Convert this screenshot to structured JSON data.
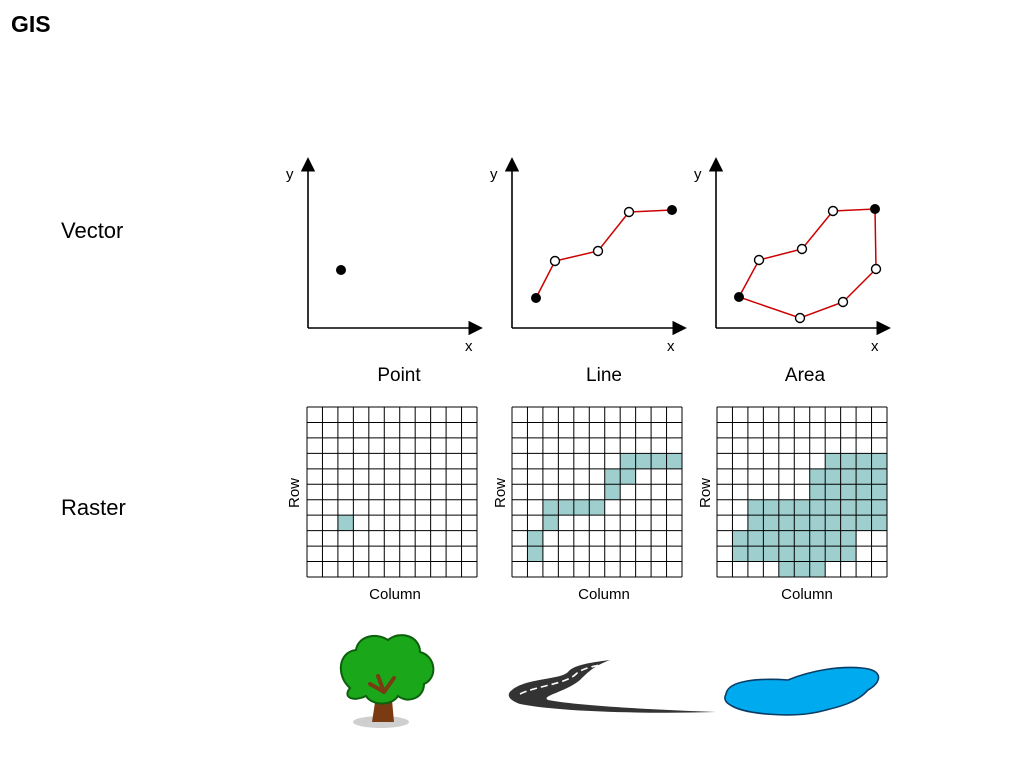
{
  "title": "GIS",
  "row_labels": {
    "vector": "Vector",
    "raster": "Raster"
  },
  "columns": [
    {
      "key": "point",
      "caption": "Point"
    },
    {
      "key": "line",
      "caption": "Line"
    },
    {
      "key": "area",
      "caption": "Area"
    }
  ],
  "axis_labels": {
    "x": "x",
    "y": "y"
  },
  "raster_axis_labels": {
    "row": "Row",
    "column": "Column"
  },
  "raster": {
    "cols": 11,
    "rows": 11,
    "point_cells": [
      [
        2,
        7
      ]
    ],
    "line_cells": [
      [
        7,
        3
      ],
      [
        8,
        3
      ],
      [
        9,
        3
      ],
      [
        10,
        3
      ],
      [
        6,
        4
      ],
      [
        7,
        4
      ],
      [
        6,
        5
      ],
      [
        2,
        6
      ],
      [
        3,
        6
      ],
      [
        4,
        6
      ],
      [
        5,
        6
      ],
      [
        2,
        7
      ],
      [
        1,
        8
      ],
      [
        1,
        9
      ]
    ],
    "area_cells": [
      [
        7,
        3
      ],
      [
        8,
        3
      ],
      [
        9,
        3
      ],
      [
        10,
        3
      ],
      [
        6,
        4
      ],
      [
        7,
        4
      ],
      [
        8,
        4
      ],
      [
        9,
        4
      ],
      [
        10,
        4
      ],
      [
        6,
        5
      ],
      [
        7,
        5
      ],
      [
        8,
        5
      ],
      [
        9,
        5
      ],
      [
        10,
        5
      ],
      [
        2,
        6
      ],
      [
        3,
        6
      ],
      [
        4,
        6
      ],
      [
        5,
        6
      ],
      [
        6,
        6
      ],
      [
        7,
        6
      ],
      [
        8,
        6
      ],
      [
        9,
        6
      ],
      [
        10,
        6
      ],
      [
        2,
        7
      ],
      [
        3,
        7
      ],
      [
        4,
        7
      ],
      [
        5,
        7
      ],
      [
        6,
        7
      ],
      [
        7,
        7
      ],
      [
        8,
        7
      ],
      [
        9,
        7
      ],
      [
        10,
        7
      ],
      [
        1,
        8
      ],
      [
        2,
        8
      ],
      [
        3,
        8
      ],
      [
        4,
        8
      ],
      [
        5,
        8
      ],
      [
        6,
        8
      ],
      [
        7,
        8
      ],
      [
        8,
        8
      ],
      [
        1,
        9
      ],
      [
        2,
        9
      ],
      [
        3,
        9
      ],
      [
        4,
        9
      ],
      [
        5,
        9
      ],
      [
        6,
        9
      ],
      [
        7,
        9
      ],
      [
        8,
        9
      ],
      [
        4,
        10
      ],
      [
        5,
        10
      ],
      [
        6,
        10
      ]
    ]
  },
  "colors": {
    "line": "#cc0000",
    "raster_fill": "#9ecfce",
    "tree_foliage": "#1aa81a",
    "tree_trunk": "#7a3a12",
    "lake": "#00aaee",
    "road": "#333333"
  },
  "icons": [
    "tree-icon",
    "road-icon",
    "lake-icon"
  ]
}
